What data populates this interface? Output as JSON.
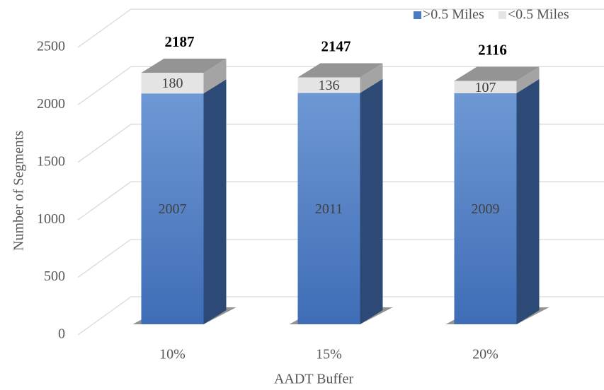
{
  "chart_data": {
    "type": "bar3d_stacked",
    "categories": [
      "10%",
      "15%",
      "20%"
    ],
    "series": [
      {
        "name": ">0.5 Miles",
        "color": "#4a7cc3",
        "values": [
          2007,
          2011,
          2009
        ]
      },
      {
        "name": "<0.5 Miles",
        "color": "#e4e4e4",
        "values": [
          180,
          136,
          107
        ]
      }
    ],
    "totals": [
      2187,
      2147,
      2116
    ],
    "ylim": [
      0,
      2500
    ],
    "yticks": [
      0,
      500,
      1000,
      1500,
      2000,
      2500
    ],
    "ylabel": "Number of Segments",
    "xlabel": "AADT Buffer",
    "grid": true,
    "legend": "upper right"
  }
}
